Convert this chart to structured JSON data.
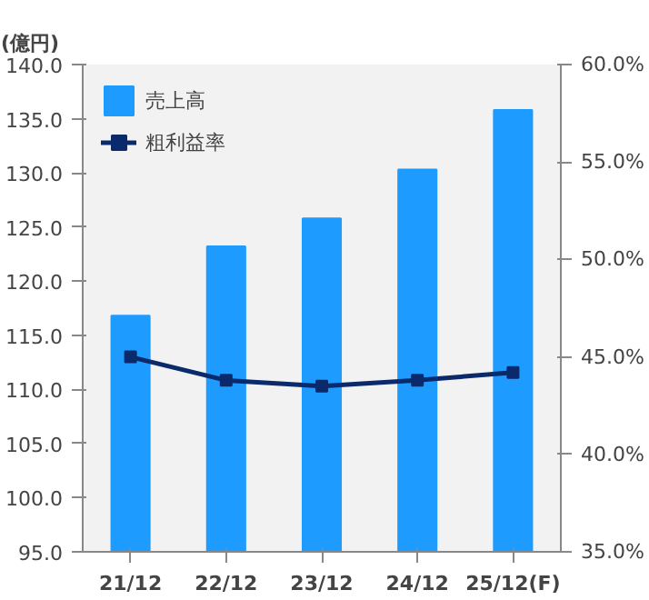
{
  "chart_data": {
    "type": "bar",
    "ylabel": "(億円)",
    "categories": [
      "21/12",
      "22/12",
      "23/12",
      "24/12",
      "25/12(F)"
    ],
    "series": [
      {
        "name": "売上高",
        "color": "#1e9bff",
        "values": [
          116.8,
          123.2,
          125.8,
          130.3,
          135.8
        ]
      },
      {
        "name": "粗利益率",
        "type": "line",
        "axis": "y2",
        "color": "#0b2a6b",
        "values": [
          45.0,
          43.8,
          43.5,
          43.8,
          44.2
        ]
      }
    ],
    "ylim": [
      95,
      140
    ],
    "yticks": [
      {
        "value": 95,
        "label": "95.0"
      },
      {
        "value": 100,
        "label": "100.0"
      },
      {
        "value": 105,
        "label": "105.0"
      },
      {
        "value": 110,
        "label": "110.0"
      },
      {
        "value": 115,
        "label": "115.0"
      },
      {
        "value": 120,
        "label": "120.0"
      },
      {
        "value": 125,
        "label": "125.0"
      },
      {
        "value": 130,
        "label": "130.0"
      },
      {
        "value": 135,
        "label": "135.0"
      },
      {
        "value": 140,
        "label": "140.0"
      }
    ],
    "y2lim": [
      35,
      60
    ],
    "y2ticks": [
      {
        "value": 35,
        "label": "35.0%"
      },
      {
        "value": 40,
        "label": "40.0%"
      },
      {
        "value": 45,
        "label": "45.0%"
      },
      {
        "value": 50,
        "label": "50.0%"
      },
      {
        "value": 55,
        "label": "55.0%"
      },
      {
        "value": 60,
        "label": "60.0%"
      }
    ],
    "grid": false,
    "legend": "top left",
    "marker": "square"
  }
}
